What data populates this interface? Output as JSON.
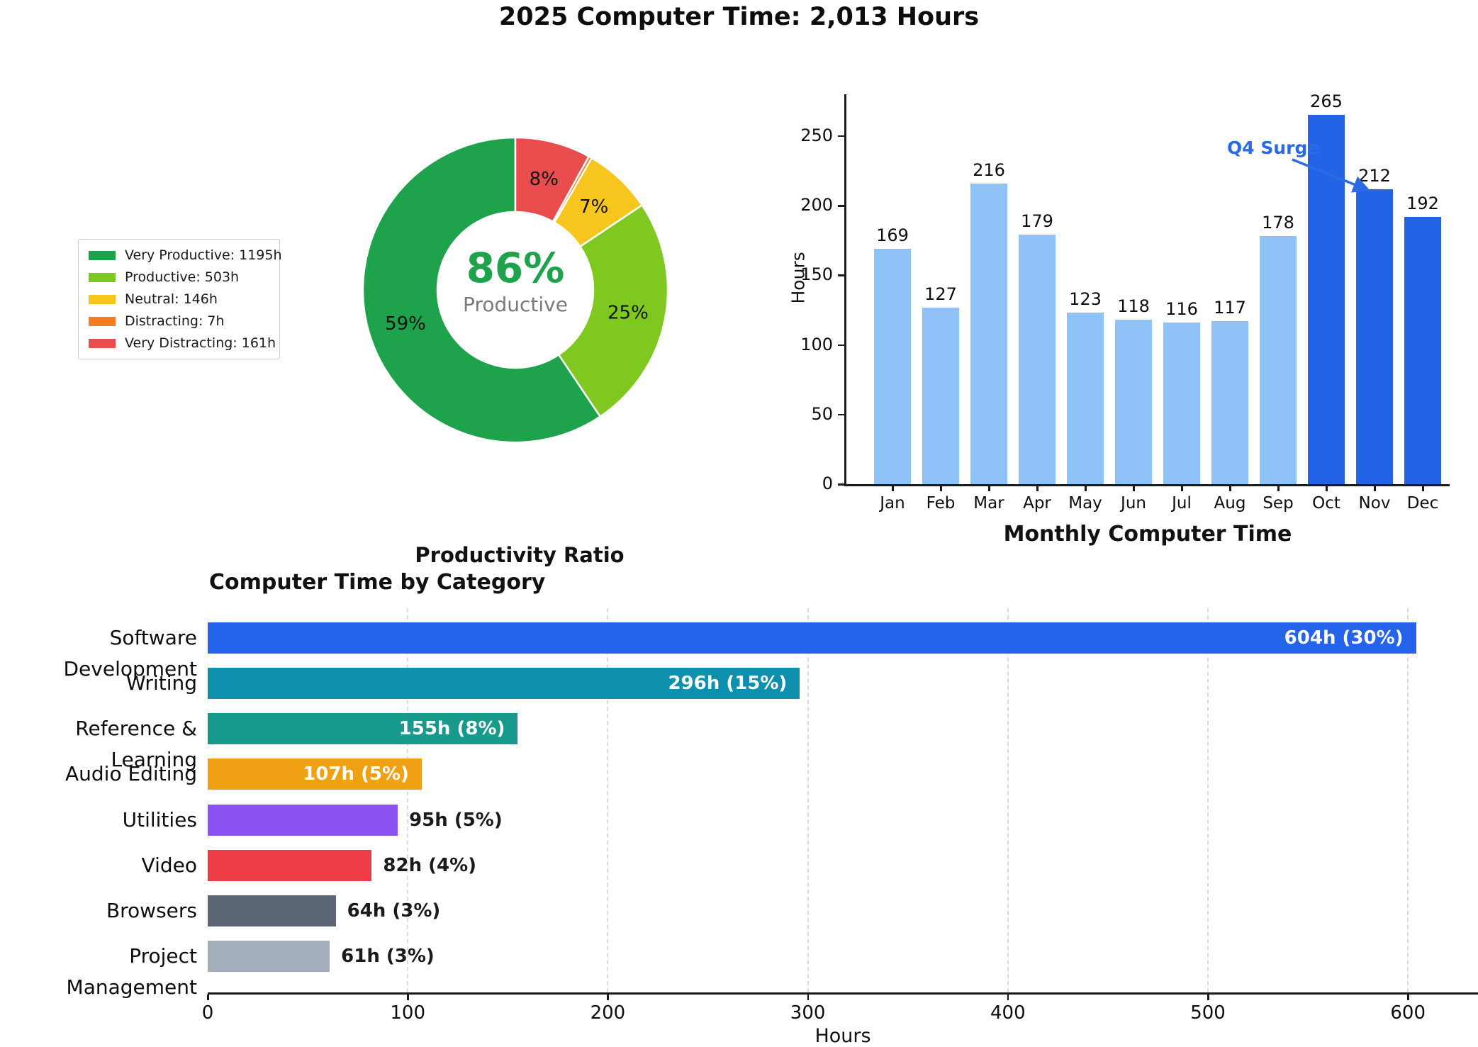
{
  "header": {
    "title": "2025 Computer Time: 2,013 Hours"
  },
  "chart_data": [
    {
      "type": "pie",
      "title": "Productivity Ratio",
      "center_value": "86%",
      "center_label": "Productive",
      "center_value_color": "#1ea24c",
      "slices": [
        {
          "name": "Very Productive",
          "legend_label": "Very Productive: 1195h",
          "hours": 1195,
          "pct_label": "59%",
          "color": "#1ea24c"
        },
        {
          "name": "Productive",
          "legend_label": "Productive: 503h",
          "hours": 503,
          "pct_label": "25%",
          "color": "#7ec820"
        },
        {
          "name": "Neutral",
          "legend_label": "Neutral: 146h",
          "hours": 146,
          "pct_label": "7%",
          "color": "#f6c51e"
        },
        {
          "name": "Distracting",
          "legend_label": "Distracting: 7h",
          "hours": 7,
          "pct_label": "",
          "color": "#f57d1f"
        },
        {
          "name": "Very Distracting",
          "legend_label": "Very Distracting: 161h",
          "hours": 161,
          "pct_label": "8%",
          "color": "#e84c4c"
        }
      ],
      "legend_position": "left"
    },
    {
      "type": "bar",
      "title": "Monthly Computer Time",
      "ylabel": "Hours",
      "categories": [
        "Jan",
        "Feb",
        "Mar",
        "Apr",
        "May",
        "Jun",
        "Jul",
        "Aug",
        "Sep",
        "Oct",
        "Nov",
        "Dec"
      ],
      "values": [
        169,
        127,
        216,
        179,
        123,
        118,
        116,
        117,
        178,
        265,
        212,
        192
      ],
      "ylim": [
        0,
        280
      ],
      "yticks": [
        0,
        50,
        100,
        150,
        200,
        250
      ],
      "bar_color": "#8fc3f8",
      "highlight_color": "#2563e6",
      "highlight_from_index": 9,
      "grid": "off",
      "annotation": {
        "text": "Q4 Surge",
        "color": "#2a6be5",
        "points_to": "Nov"
      }
    },
    {
      "type": "bar",
      "orientation": "horizontal",
      "title": "Computer Time by Category",
      "xlabel": "Hours",
      "categories": [
        "Software Development",
        "Writing",
        "Reference & Learning",
        "Audio Editing",
        "Utilities",
        "Video",
        "Browsers",
        "Project Management"
      ],
      "values": [
        604,
        296,
        155,
        107,
        95,
        82,
        64,
        61
      ],
      "bar_labels": [
        "604h (30%)",
        "296h (15%)",
        "155h (8%)",
        "107h (5%)",
        "95h (5%)",
        "82h (4%)",
        "64h (3%)",
        "61h (3%)"
      ],
      "colors": [
        "#2563eb",
        "#0e8fae",
        "#17998b",
        "#f0a013",
        "#8c53f2",
        "#ee3d46",
        "#5c6675",
        "#a4adba"
      ],
      "xlim": [
        0,
        635
      ],
      "xticks": [
        0,
        100,
        200,
        300,
        400,
        500,
        600
      ],
      "grid": "x-dashed"
    }
  ]
}
